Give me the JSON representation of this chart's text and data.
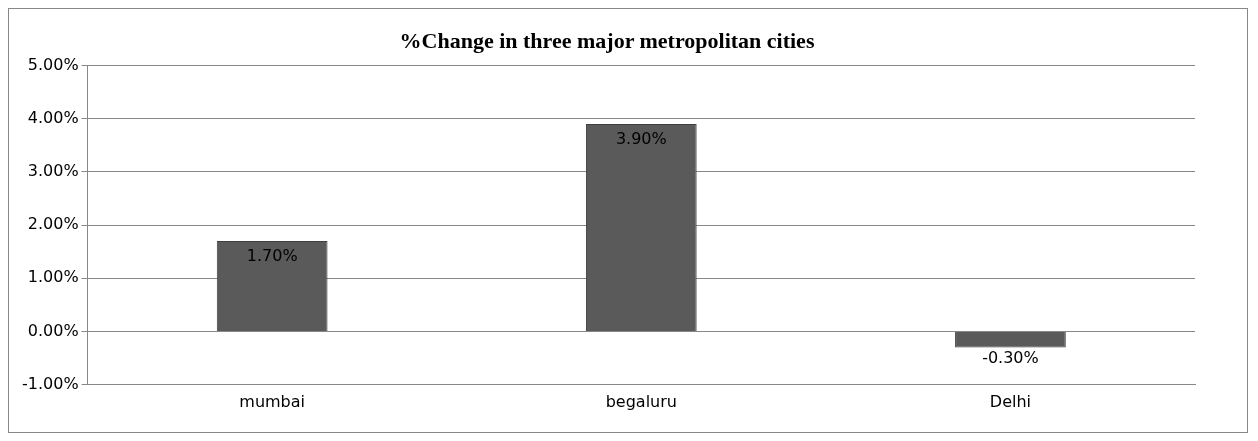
{
  "chart_data": {
    "type": "bar",
    "title": "%Change in three major metropolitan cities",
    "categories": [
      "mumbai",
      "begaluru",
      "Delhi"
    ],
    "values": [
      1.7,
      3.9,
      -0.3
    ],
    "value_labels": [
      "1.70%",
      "3.90%",
      "-0.30%"
    ],
    "color": "#5a5a5a",
    "ylim": [
      -1,
      5
    ],
    "yticks": [
      {
        "value": -1,
        "label": "-1.00%"
      },
      {
        "value": 0,
        "label": "0.00%"
      },
      {
        "value": 1,
        "label": "1.00%"
      },
      {
        "value": 2,
        "label": "2.00%"
      },
      {
        "value": 3,
        "label": "3.00%"
      },
      {
        "value": 4,
        "label": "4.00%"
      },
      {
        "value": 5,
        "label": "5.00%"
      }
    ],
    "grid": "y",
    "legend": false
  }
}
